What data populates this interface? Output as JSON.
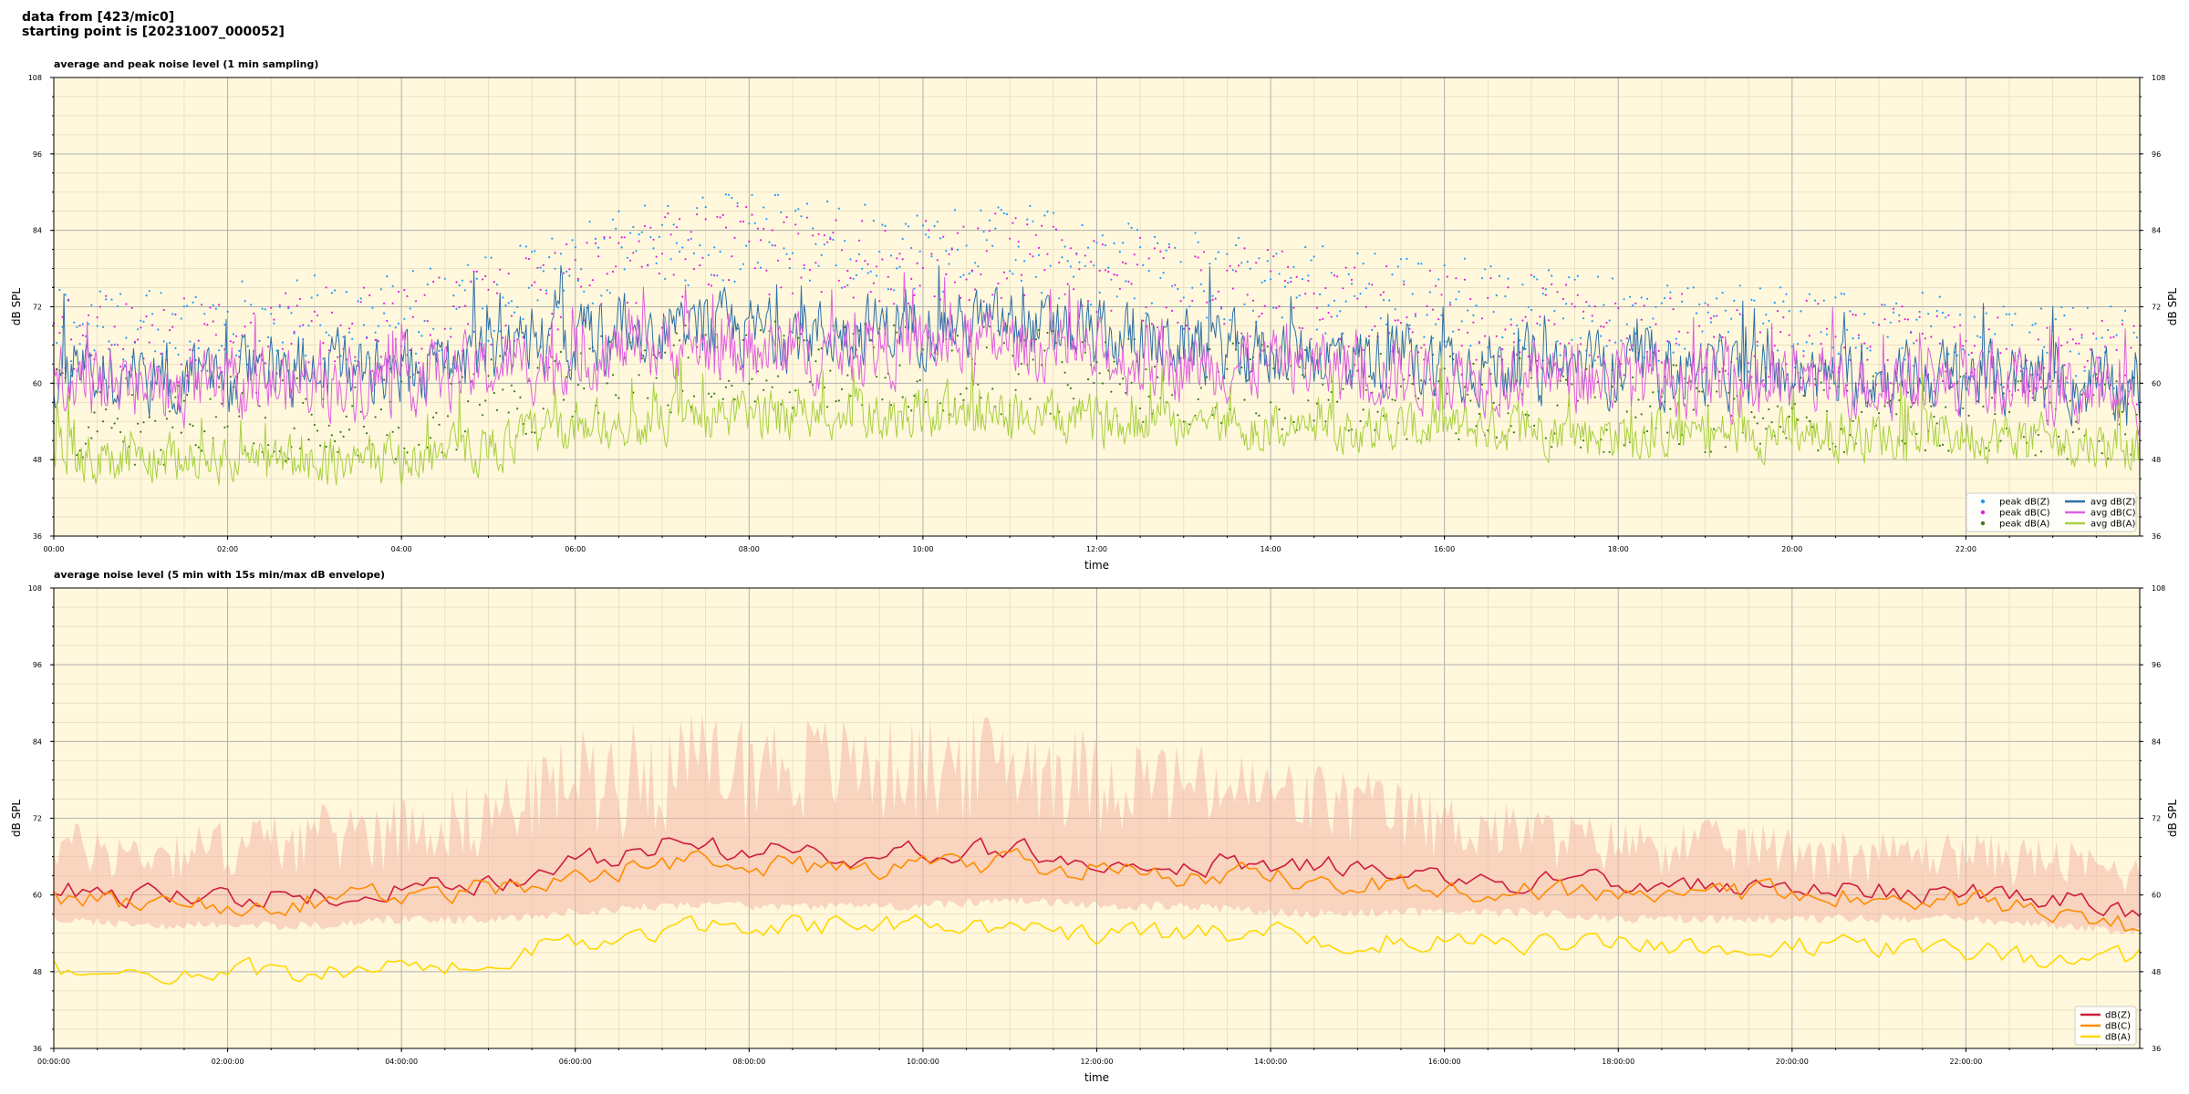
{
  "header": {
    "line1": "data from [423/mic0]",
    "line2": "starting point is [20231007_000052]"
  },
  "chart_data": [
    {
      "type": "line",
      "title": "average and peak noise level (1 min sampling)",
      "xlabel": "time",
      "ylabel": "dB SPL",
      "ylabel_right": "dB SPL",
      "xlim_hours": [
        0,
        24
      ],
      "ylim": [
        36,
        108
      ],
      "yticks": [
        36,
        48,
        60,
        72,
        84,
        96,
        108
      ],
      "xtick_labels": [
        "00:00",
        "02:00",
        "04:00",
        "06:00",
        "08:00",
        "10:00",
        "12:00",
        "14:00",
        "16:00",
        "18:00",
        "20:00",
        "22:00"
      ],
      "grid": true,
      "background": "#fff8dc",
      "legend_position": "lower-right",
      "x_hours": [
        0,
        1,
        2,
        3,
        4,
        5,
        6,
        7,
        8,
        9,
        10,
        11,
        12,
        13,
        14,
        15,
        16,
        17,
        18,
        19,
        20,
        21,
        22,
        23,
        24
      ],
      "series": [
        {
          "name": "peak dB(Z)",
          "kind": "scatter",
          "color": "#1f9bff",
          "values": [
            70,
            68,
            69,
            70,
            71,
            73,
            78,
            82,
            83,
            82,
            81,
            82,
            79,
            77,
            76,
            74,
            73,
            72,
            70,
            69,
            68,
            68,
            67,
            66,
            65
          ]
        },
        {
          "name": "peak dB(C)",
          "kind": "scatter",
          "color": "#e020e0",
          "values": [
            68,
            66,
            67,
            68,
            69,
            71,
            76,
            80,
            81,
            80,
            79,
            80,
            77,
            75,
            74,
            72,
            71,
            70,
            68,
            67,
            66,
            66,
            65,
            64,
            63
          ]
        },
        {
          "name": "peak dB(A)",
          "kind": "scatter",
          "color": "#3a7a1a",
          "values": [
            56,
            54,
            54,
            55,
            55,
            57,
            60,
            62,
            63,
            63,
            62,
            62,
            61,
            60,
            59,
            58,
            58,
            57,
            56,
            56,
            56,
            56,
            56,
            55,
            54
          ]
        },
        {
          "name": "avg dB(Z)",
          "kind": "line",
          "color": "#2f6fa8",
          "values": [
            62,
            61,
            61,
            62,
            63,
            64,
            67,
            69,
            68,
            68,
            69,
            69,
            67,
            66,
            65,
            64,
            63,
            63,
            62,
            62,
            61,
            61,
            61,
            60,
            58
          ]
        },
        {
          "name": "avg dB(C)",
          "kind": "line",
          "color": "#e060e0",
          "values": [
            60,
            59,
            59,
            60,
            61,
            62,
            64,
            66,
            65,
            65,
            66,
            66,
            64,
            63,
            63,
            62,
            61,
            61,
            61,
            60,
            60,
            60,
            60,
            59,
            57
          ]
        },
        {
          "name": "avg dB(A)",
          "kind": "line",
          "color": "#a8d040",
          "values": [
            49,
            48,
            48,
            48,
            48,
            50,
            53,
            54,
            55,
            55,
            55,
            55,
            54,
            54,
            53,
            53,
            53,
            53,
            52,
            52,
            52,
            52,
            52,
            51,
            50
          ]
        }
      ]
    },
    {
      "type": "line",
      "title": "average noise level (5 min with 15s min/max dB envelope)",
      "xlabel": "time",
      "ylabel": "dB SPL",
      "ylabel_right": "dB SPL",
      "xlim_hours": [
        0,
        24
      ],
      "ylim": [
        36,
        108
      ],
      "yticks": [
        36,
        48,
        60,
        72,
        84,
        96,
        108
      ],
      "xtick_labels": [
        "00:00:00",
        "02:00:00",
        "04:00:00",
        "06:00:00",
        "08:00:00",
        "10:00:00",
        "12:00:00",
        "14:00:00",
        "16:00:00",
        "18:00:00",
        "20:00:00",
        "22:00:00"
      ],
      "grid": true,
      "background": "#fff8dc",
      "legend_position": "lower-right",
      "x_hours": [
        0,
        1,
        2,
        3,
        4,
        5,
        6,
        7,
        8,
        9,
        10,
        11,
        12,
        13,
        14,
        15,
        16,
        17,
        18,
        19,
        20,
        21,
        22,
        23,
        24
      ],
      "envelope": {
        "color": "#f4b6a6",
        "min": [
          57,
          56,
          56,
          56,
          57,
          57,
          58,
          59,
          59,
          59,
          59,
          60,
          59,
          59,
          58,
          58,
          58,
          58,
          57,
          57,
          57,
          57,
          57,
          56,
          55
        ],
        "max": [
          72,
          70,
          72,
          74,
          76,
          78,
          86,
          88,
          89,
          88,
          88,
          89,
          86,
          84,
          82,
          80,
          76,
          74,
          72,
          72,
          71,
          70,
          70,
          69,
          66
        ]
      },
      "series": [
        {
          "name": "dB(Z)",
          "color": "#d01c3c",
          "values": [
            61,
            60,
            60,
            60,
            61,
            62,
            65,
            68,
            67,
            66,
            67,
            67,
            66,
            65,
            65,
            64,
            63,
            62,
            62,
            61,
            61,
            61,
            60,
            60,
            57
          ]
        },
        {
          "name": "dB(C)",
          "color": "#ff8c00",
          "values": [
            59,
            59,
            58,
            59,
            60,
            61,
            63,
            65,
            65,
            64,
            65,
            65,
            64,
            63,
            63,
            62,
            61,
            61,
            60,
            60,
            60,
            60,
            59,
            58,
            55
          ]
        },
        {
          "name": "dB(A)",
          "color": "#ffd700",
          "values": [
            49,
            48,
            48,
            48,
            49,
            50,
            53,
            54,
            55,
            55,
            55,
            55,
            54,
            54,
            54,
            53,
            53,
            52,
            52,
            52,
            52,
            52,
            51,
            50,
            50
          ]
        }
      ]
    }
  ]
}
